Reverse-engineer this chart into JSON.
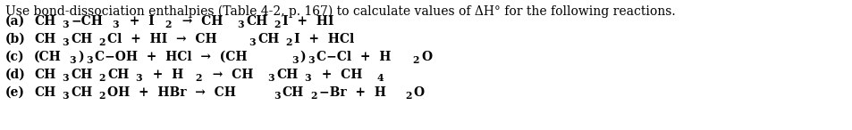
{
  "background_color": "#ffffff",
  "figsize": [
    9.54,
    1.46
  ],
  "dpi": 100,
  "font_family": "DejaVu Serif",
  "font_size": 10.0,
  "text_color": "#000000",
  "header": "Use bond-dissociation enthalpies (Table 4-2, p. 167) to calculate values of ΔH° for the following reactions.",
  "lines": [
    {
      "label": "(a)",
      "segments": [
        {
          "t": "CH",
          "s": false
        },
        {
          "t": "3",
          "s": true
        },
        {
          "t": "−CH",
          "s": false
        },
        {
          "t": "3",
          "s": true
        },
        {
          "t": "  +  I",
          "s": false
        },
        {
          "t": "2",
          "s": true
        },
        {
          "t": "  →  CH",
          "s": false
        },
        {
          "t": "3",
          "s": true
        },
        {
          "t": "CH",
          "s": false
        },
        {
          "t": "2",
          "s": true
        },
        {
          "t": "I  +  HI",
          "s": false
        }
      ]
    },
    {
      "label": "(b)",
      "segments": [
        {
          "t": "CH",
          "s": false
        },
        {
          "t": "3",
          "s": true
        },
        {
          "t": "CH",
          "s": false
        },
        {
          "t": "2",
          "s": true
        },
        {
          "t": "Cl  +  HI  →  CH",
          "s": false
        },
        {
          "t": "3",
          "s": true
        },
        {
          "t": "CH",
          "s": false
        },
        {
          "t": "2",
          "s": true
        },
        {
          "t": "I  +  HCl",
          "s": false
        }
      ]
    },
    {
      "label": "(c)",
      "segments": [
        {
          "t": "(CH",
          "s": false
        },
        {
          "t": "3",
          "s": true
        },
        {
          "t": ")",
          "s": false
        },
        {
          "t": "3",
          "s": true
        },
        {
          "t": "C−OH  +  HCl  →  (CH",
          "s": false
        },
        {
          "t": "3",
          "s": true
        },
        {
          "t": ")",
          "s": false
        },
        {
          "t": "3",
          "s": true
        },
        {
          "t": "C−Cl  +  H",
          "s": false
        },
        {
          "t": "2",
          "s": true
        },
        {
          "t": "O",
          "s": false
        }
      ]
    },
    {
      "label": "(d)",
      "segments": [
        {
          "t": "CH",
          "s": false
        },
        {
          "t": "3",
          "s": true
        },
        {
          "t": "CH",
          "s": false
        },
        {
          "t": "2",
          "s": true
        },
        {
          "t": "CH",
          "s": false
        },
        {
          "t": "3",
          "s": true
        },
        {
          "t": "  +  H",
          "s": false
        },
        {
          "t": "2",
          "s": true
        },
        {
          "t": "  →  CH",
          "s": false
        },
        {
          "t": "3",
          "s": true
        },
        {
          "t": "CH",
          "s": false
        },
        {
          "t": "3",
          "s": true
        },
        {
          "t": "  +  CH",
          "s": false
        },
        {
          "t": "4",
          "s": true
        }
      ]
    },
    {
      "label": "(e)",
      "segments": [
        {
          "t": "CH",
          "s": false
        },
        {
          "t": "3",
          "s": true
        },
        {
          "t": "CH",
          "s": false
        },
        {
          "t": "2",
          "s": true
        },
        {
          "t": "OH  +  HBr  →  CH",
          "s": false
        },
        {
          "t": "3",
          "s": true
        },
        {
          "t": "CH",
          "s": false
        },
        {
          "t": "2",
          "s": true
        },
        {
          "t": "−Br  +  H",
          "s": false
        },
        {
          "t": "2",
          "s": true
        },
        {
          "t": "O",
          "s": false
        }
      ]
    }
  ]
}
